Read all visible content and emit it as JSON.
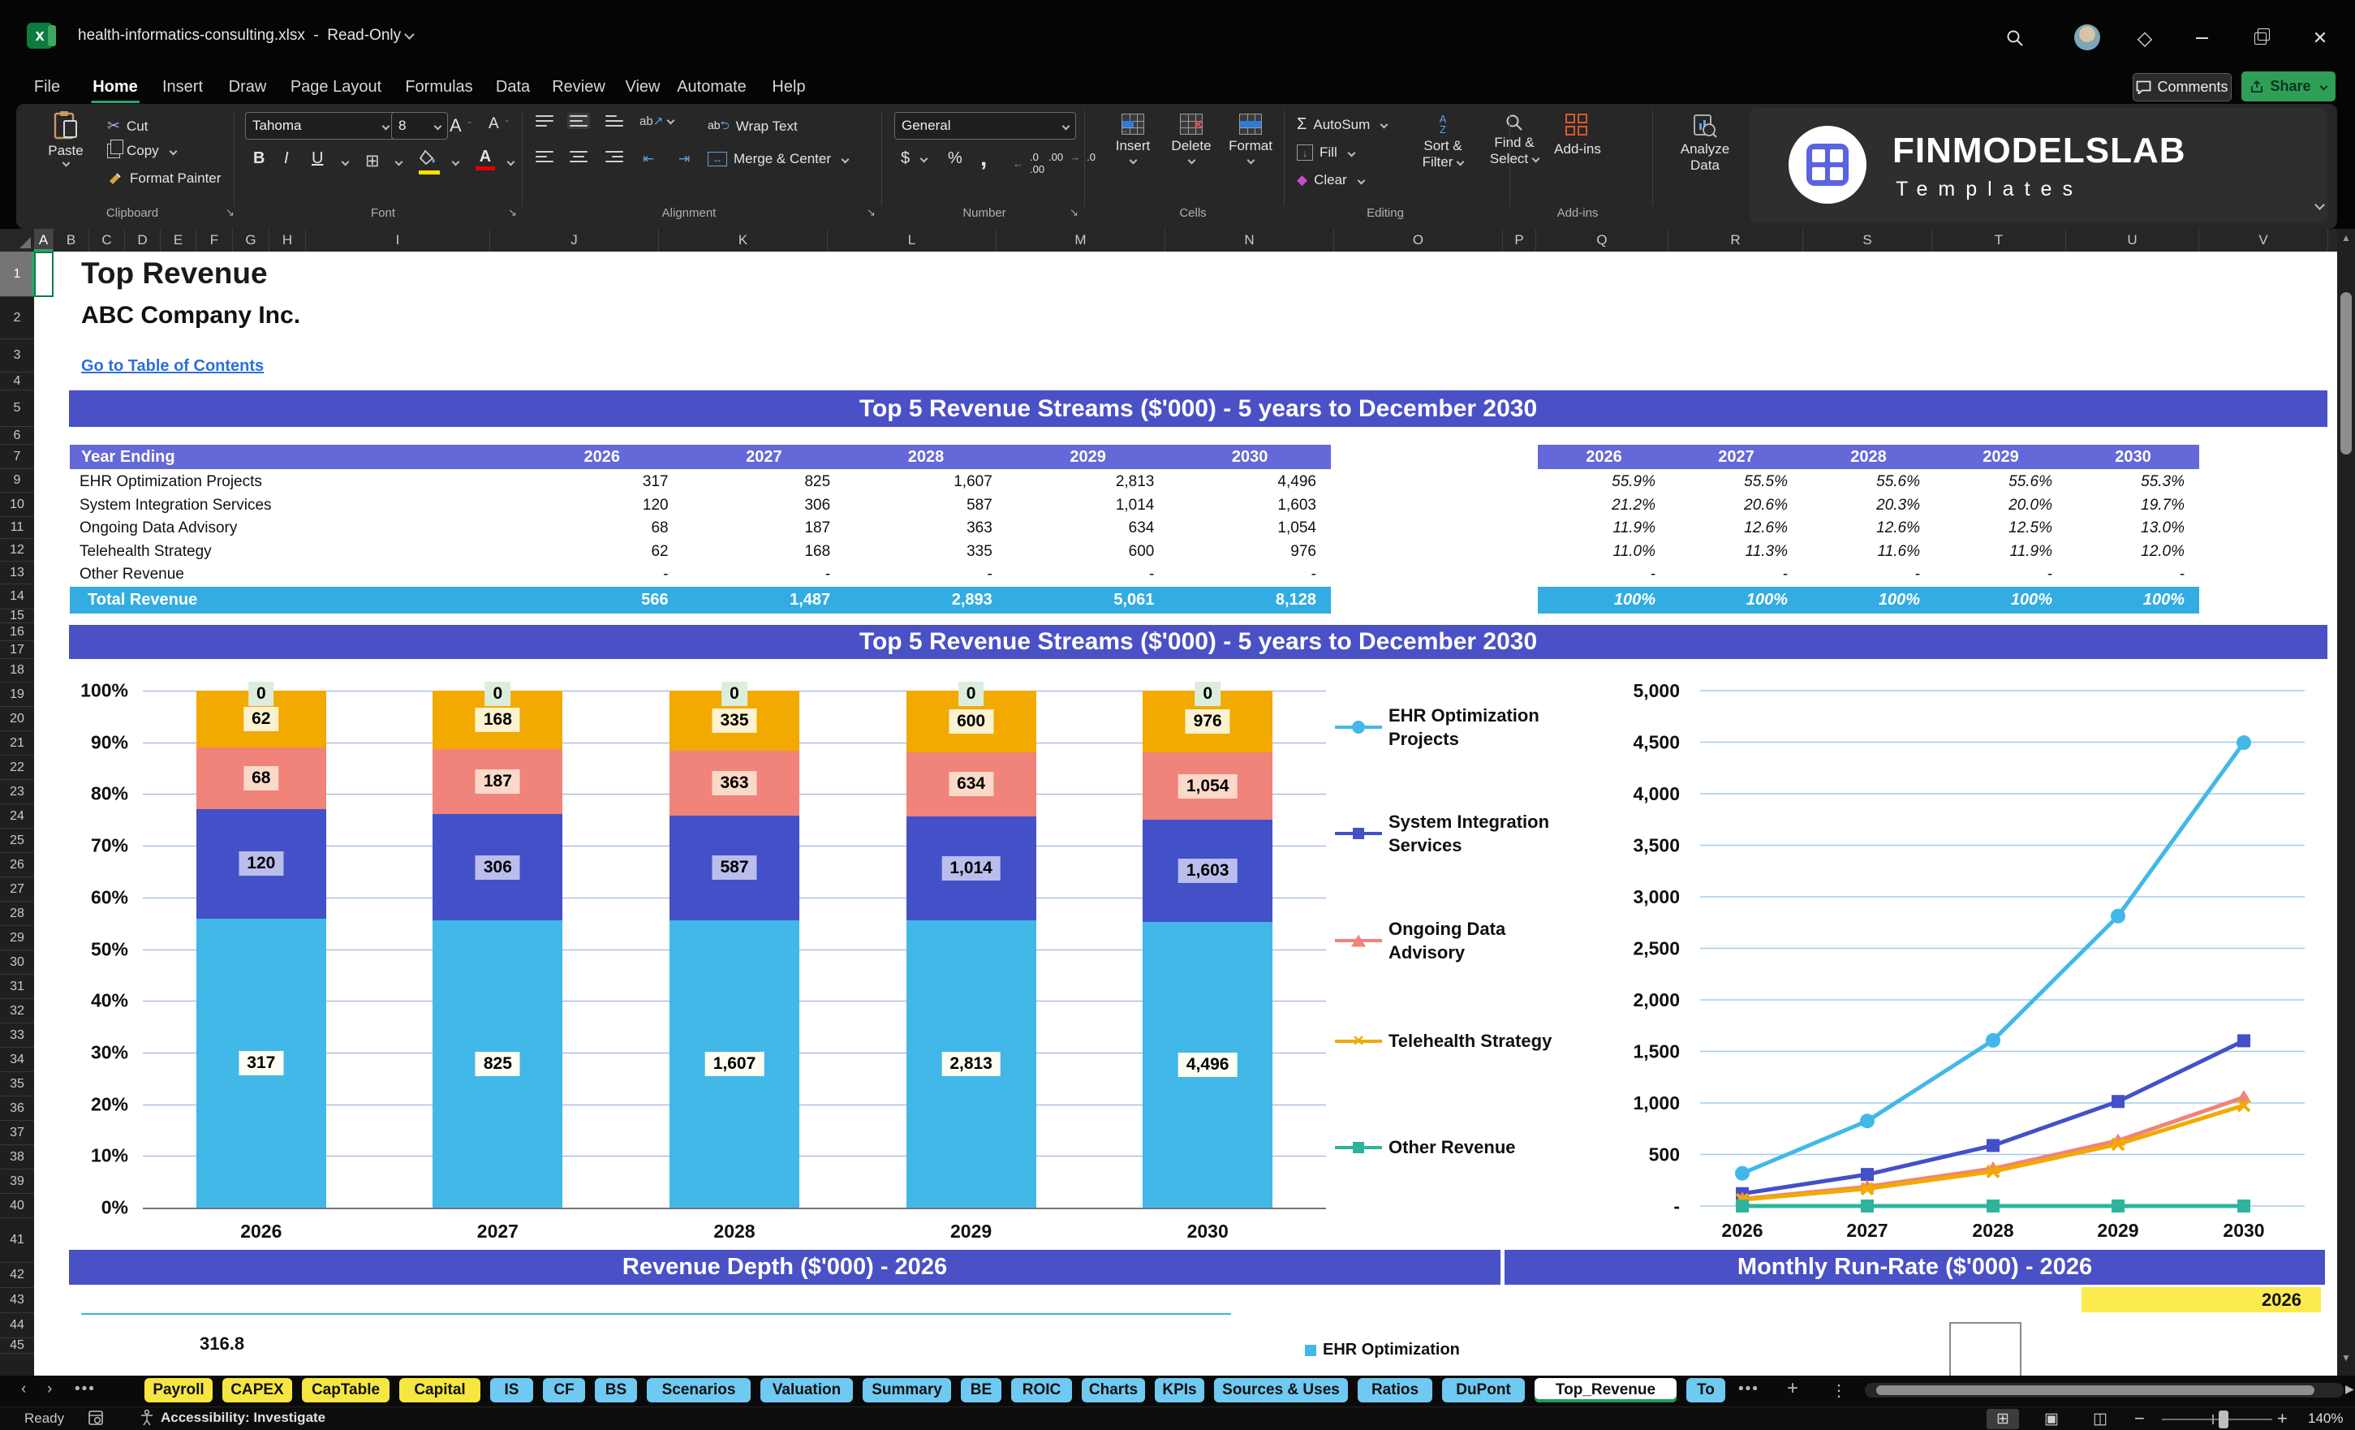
{
  "title_bar": {
    "filename": "health-informatics-consulting.xlsx",
    "separator": "-",
    "mode": "Read-Only"
  },
  "ribbon": {
    "tabs": [
      "File",
      "Home",
      "Insert",
      "Draw",
      "Page Layout",
      "Formulas",
      "Data",
      "Review",
      "View",
      "Automate",
      "Help"
    ],
    "active_tab": "Home",
    "comments_label": "Comments",
    "share_label": "Share",
    "clipboard": {
      "paste": "Paste",
      "cut": "Cut",
      "copy": "Copy",
      "format_painter": "Format Painter",
      "group": "Clipboard"
    },
    "font": {
      "name": "Tahoma",
      "size": "8",
      "bold": "B",
      "italic": "I",
      "underline": "U",
      "group": "Font"
    },
    "alignment": {
      "wrap": "Wrap Text",
      "merge": "Merge & Center",
      "group": "Alignment"
    },
    "number": {
      "format": "General",
      "currency": "$",
      "percent": "%",
      "comma": ",",
      "group": "Number"
    },
    "cells": {
      "insert": "Insert",
      "delete": "Delete",
      "format": "Format",
      "group": "Cells"
    },
    "editing": {
      "autosum": "AutoSum",
      "fill": "Fill",
      "clear": "Clear",
      "sort1": "Sort &",
      "sort2": "Filter",
      "find1": "Find &",
      "find2": "Select",
      "group": "Editing"
    },
    "addins": {
      "label": "Add-ins",
      "group": "Add-ins"
    },
    "analyze": {
      "line1": "Analyze",
      "line2": "Data"
    },
    "logo": {
      "line1": "FINMODELSLAB",
      "line2": "Templates"
    }
  },
  "sheet": {
    "columns": [
      "A",
      "B",
      "C",
      "D",
      "E",
      "F",
      "G",
      "H",
      "I",
      "J",
      "K",
      "L",
      "M",
      "N",
      "O",
      "P",
      "Q",
      "R",
      "S",
      "T",
      "U",
      "V"
    ],
    "rows": [
      "1",
      "2",
      "3",
      "4",
      "5",
      "6",
      "7",
      "9",
      "10",
      "11",
      "12",
      "13",
      "14",
      "15",
      "16",
      "17",
      "18",
      "19",
      "20",
      "21",
      "22",
      "23",
      "24",
      "25",
      "26",
      "27",
      "28",
      "29",
      "30",
      "31",
      "32",
      "33",
      "34",
      "35",
      "36",
      "37",
      "38",
      "39",
      "40",
      "41",
      "42",
      "43",
      "44",
      "45"
    ],
    "doc_title": "Top Revenue",
    "company": "ABC Company Inc.",
    "toc_link": "Go to Table of Contents",
    "banner_table": "Top 5 Revenue Streams ($'000) - 5 years to December 2030",
    "banner_chart": "Top 5 Revenue Streams ($'000) - 5 years to December 2030",
    "banner_depth": "Revenue Depth ($'000) - 2026",
    "banner_runrate": "Monthly Run-Rate ($'000) - 2026",
    "runrate_year_cell": "2026",
    "depth_partial_value": "316.8",
    "runrate_partial_legend": "EHR Optimization"
  },
  "table": {
    "header": "Year Ending",
    "years": [
      "2026",
      "2027",
      "2028",
      "2029",
      "2030"
    ],
    "rows": [
      {
        "label": "EHR Optimization Projects",
        "values": [
          "317",
          "825",
          "1,607",
          "2,813",
          "4,496"
        ],
        "pcts": [
          "55.9%",
          "55.5%",
          "55.6%",
          "55.6%",
          "55.3%"
        ]
      },
      {
        "label": "System Integration Services",
        "values": [
          "120",
          "306",
          "587",
          "1,014",
          "1,603"
        ],
        "pcts": [
          "21.2%",
          "20.6%",
          "20.3%",
          "20.0%",
          "19.7%"
        ]
      },
      {
        "label": "Ongoing Data Advisory",
        "values": [
          "68",
          "187",
          "363",
          "634",
          "1,054"
        ],
        "pcts": [
          "11.9%",
          "12.6%",
          "12.6%",
          "12.5%",
          "13.0%"
        ]
      },
      {
        "label": "Telehealth Strategy",
        "values": [
          "62",
          "168",
          "335",
          "600",
          "976"
        ],
        "pcts": [
          "11.0%",
          "11.3%",
          "11.6%",
          "11.9%",
          "12.0%"
        ]
      },
      {
        "label": "Other Revenue",
        "values": [
          "-",
          "-",
          "-",
          "-",
          "-"
        ],
        "pcts": [
          "-",
          "-",
          "-",
          "-",
          "-"
        ]
      }
    ],
    "total": {
      "label": "Total Revenue",
      "values": [
        "566",
        "1,487",
        "2,893",
        "5,061",
        "8,128"
      ],
      "pcts": [
        "100%",
        "100%",
        "100%",
        "100%",
        "100%"
      ]
    }
  },
  "chart_data": [
    {
      "type": "bar",
      "stacked": "percent",
      "title": "Top 5 Revenue Streams ($'000) - 5 years to December 2030",
      "categories": [
        "2026",
        "2027",
        "2028",
        "2029",
        "2030"
      ],
      "series": [
        {
          "name": "EHR Optimization Projects",
          "values": [
            317,
            825,
            1607,
            2813,
            4496
          ],
          "labels": [
            "317",
            "825",
            "1,607",
            "2,813",
            "4,496"
          ],
          "color": "#41b8e8",
          "label_bg": "#fdfdf3"
        },
        {
          "name": "System Integration Services",
          "values": [
            120,
            306,
            587,
            1014,
            1603
          ],
          "labels": [
            "120",
            "306",
            "587",
            "1,014",
            "1,603"
          ],
          "color": "#4450c8",
          "label_bg": "#babeec"
        },
        {
          "name": "Ongoing Data Advisory",
          "values": [
            68,
            187,
            363,
            634,
            1054
          ],
          "labels": [
            "68",
            "187",
            "363",
            "634",
            "1,054"
          ],
          "color": "#f0837a",
          "label_bg": "#fad9c8"
        },
        {
          "name": "Telehealth Strategy",
          "values": [
            62,
            168,
            335,
            600,
            976
          ],
          "labels": [
            "62",
            "168",
            "335",
            "600",
            "976"
          ],
          "color": "#f2a900",
          "label_bg": "#fcf2cf"
        },
        {
          "name": "Other Revenue",
          "values": [
            0,
            0,
            0,
            0,
            0
          ],
          "labels": [
            "0",
            "0",
            "0",
            "0",
            "0"
          ],
          "color": "#2eb49c",
          "label_bg": "#dceddc"
        }
      ],
      "yticks": [
        "100%",
        "90%",
        "80%",
        "70%",
        "60%",
        "50%",
        "40%",
        "30%",
        "20%",
        "10%",
        "0%"
      ],
      "ylim": [
        0,
        1
      ],
      "grid": true,
      "legend_position": "right"
    },
    {
      "type": "line",
      "categories": [
        "2026",
        "2027",
        "2028",
        "2029",
        "2030"
      ],
      "series": [
        {
          "name": "EHR Optimization Projects",
          "values": [
            317,
            825,
            1607,
            2813,
            4496
          ],
          "color": "#41b8e8",
          "marker": "circle"
        },
        {
          "name": "System Integration Services",
          "values": [
            120,
            306,
            587,
            1014,
            1603
          ],
          "color": "#4450c8",
          "marker": "square"
        },
        {
          "name": "Ongoing Data Advisory",
          "values": [
            68,
            187,
            363,
            634,
            1054
          ],
          "color": "#f0837a",
          "marker": "triangle"
        },
        {
          "name": "Telehealth Strategy",
          "values": [
            62,
            168,
            335,
            600,
            976
          ],
          "color": "#f2a900",
          "marker": "x"
        },
        {
          "name": "Other Revenue",
          "values": [
            0,
            0,
            0,
            0,
            0
          ],
          "color": "#2eb49c",
          "marker": "square"
        }
      ],
      "yticks": [
        "5,000",
        "4,500",
        "4,000",
        "3,500",
        "3,000",
        "2,500",
        "2,000",
        "1,500",
        "1,000",
        "500",
        "-"
      ],
      "ylim": [
        0,
        5000
      ],
      "grid": true
    }
  ],
  "legend": [
    {
      "lines": [
        "EHR Optimization",
        "Projects"
      ],
      "color": "#41b8e8",
      "marker": "circle"
    },
    {
      "lines": [
        "System Integration",
        "Services"
      ],
      "color": "#4450c8",
      "marker": "square"
    },
    {
      "lines": [
        "Ongoing Data",
        "Advisory"
      ],
      "color": "#f0837a",
      "marker": "triangle"
    },
    {
      "lines": [
        "Telehealth Strategy"
      ],
      "color": "#f2a900",
      "marker": "x"
    },
    {
      "lines": [
        "Other Revenue"
      ],
      "color": "#2eb49c",
      "marker": "square"
    }
  ],
  "sheet_tabs": {
    "items": [
      {
        "label": "Payroll",
        "color": "yellow"
      },
      {
        "label": "CAPEX",
        "color": "yellow"
      },
      {
        "label": "CapTable",
        "color": "yellow"
      },
      {
        "label": "Capital",
        "color": "yellow"
      },
      {
        "label": "IS",
        "color": "blue"
      },
      {
        "label": "CF",
        "color": "blue"
      },
      {
        "label": "BS",
        "color": "blue"
      },
      {
        "label": "Scenarios",
        "color": "blue"
      },
      {
        "label": "Valuation",
        "color": "blue"
      },
      {
        "label": "Summary",
        "color": "blue"
      },
      {
        "label": "BE",
        "color": "blue"
      },
      {
        "label": "ROIC",
        "color": "blue"
      },
      {
        "label": "Charts",
        "color": "blue"
      },
      {
        "label": "KPIs",
        "color": "blue"
      },
      {
        "label": "Sources & Uses",
        "color": "blue"
      },
      {
        "label": "Ratios",
        "color": "blue"
      },
      {
        "label": "DuPont",
        "color": "blue"
      },
      {
        "label": "Top_Revenue",
        "color": "active"
      },
      {
        "label": "To",
        "color": "blue"
      }
    ],
    "active": "Top_Revenue"
  },
  "status_bar": {
    "ready": "Ready",
    "accessibility": "Accessibility: Investigate",
    "zoom": "140%"
  }
}
